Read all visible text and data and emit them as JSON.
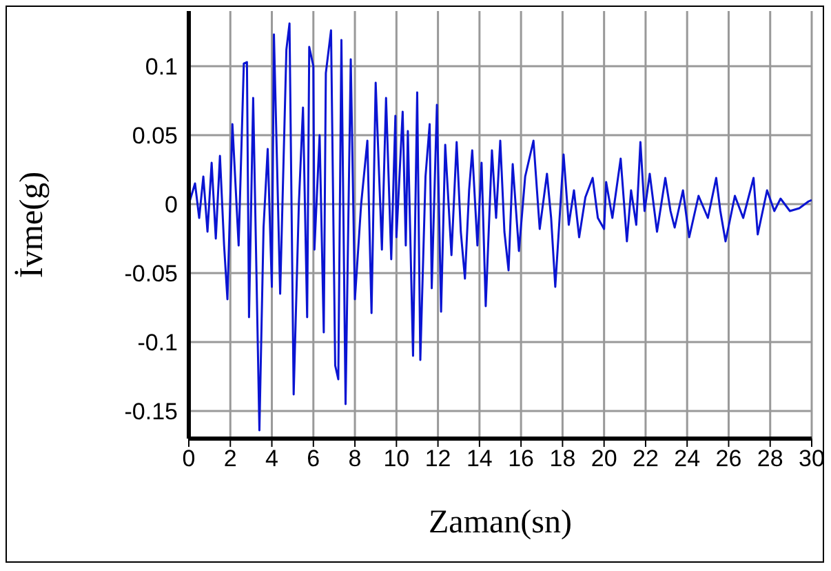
{
  "chart_data": {
    "type": "line",
    "xlabel": "Zaman(sn)",
    "ylabel": "İvme(g)",
    "xlim": [
      0,
      30
    ],
    "xticks": [
      0,
      2,
      4,
      6,
      8,
      10,
      12,
      14,
      16,
      18,
      20,
      22,
      24,
      26,
      28,
      30
    ],
    "ylim": [
      -0.17,
      0.14
    ],
    "yticks": [
      -0.15,
      -0.1,
      -0.05,
      0,
      0.05,
      0.1
    ],
    "grid": true,
    "marker": "none",
    "line_style": "solid",
    "x": [
      0,
      0.3,
      0.5,
      0.7,
      0.9,
      1.1,
      1.3,
      1.5,
      1.7,
      1.86,
      2.1,
      2.4,
      2.65,
      2.8,
      2.9,
      3.1,
      3.4,
      3.6,
      3.8,
      4.0,
      4.1,
      4.4,
      4.7,
      4.85,
      5.05,
      5.3,
      5.5,
      5.7,
      5.8,
      6.0,
      6.05,
      6.3,
      6.5,
      6.6,
      6.85,
      7.05,
      7.2,
      7.35,
      7.55,
      7.8,
      8.0,
      8.3,
      8.6,
      8.8,
      9.0,
      9.3,
      9.5,
      9.75,
      9.95,
      10.0,
      10.3,
      10.45,
      10.55,
      10.8,
      11.0,
      11.15,
      11.4,
      11.6,
      11.7,
      11.95,
      12.15,
      12.35,
      12.65,
      12.9,
      13.1,
      13.3,
      13.5,
      13.65,
      13.9,
      14.1,
      14.3,
      14.6,
      14.8,
      15.0,
      15.2,
      15.4,
      15.6,
      15.9,
      16.2,
      16.6,
      16.9,
      17.25,
      17.45,
      17.65,
      18.05,
      18.3,
      18.55,
      18.8,
      19.1,
      19.45,
      19.7,
      20.0,
      20.1,
      20.4,
      20.8,
      21.1,
      21.3,
      21.55,
      21.75,
      21.95,
      22.2,
      22.55,
      22.95,
      23.2,
      23.4,
      23.8,
      24.1,
      24.55,
      25.0,
      25.4,
      25.6,
      25.85,
      26.3,
      26.7,
      27.2,
      27.4,
      27.85,
      28.2,
      28.5,
      28.95,
      29.4,
      29.85,
      30
    ],
    "series": [
      {
        "color": "#0a14d2",
        "values": [
          0,
          0.015,
          -0.01,
          0.02,
          -0.02,
          0.03,
          -0.025,
          0.035,
          -0.03,
          -0.069,
          0.058,
          -0.03,
          0.102,
          0.103,
          -0.082,
          0.077,
          -0.164,
          -0.017,
          0.04,
          -0.06,
          0.123,
          -0.065,
          0.112,
          0.131,
          -0.138,
          0.0,
          0.07,
          -0.082,
          0.114,
          0.1,
          -0.033,
          0.05,
          -0.093,
          0.095,
          0.126,
          -0.117,
          -0.127,
          0.119,
          -0.145,
          0.105,
          -0.069,
          0.0,
          0.046,
          -0.079,
          0.088,
          -0.033,
          0.077,
          -0.04,
          0.064,
          -0.024,
          0.067,
          -0.03,
          0.053,
          -0.11,
          0.081,
          -0.113,
          0.02,
          0.058,
          -0.061,
          0.072,
          -0.078,
          0.043,
          -0.037,
          0.045,
          -0.02,
          -0.054,
          0.01,
          0.039,
          -0.03,
          0.03,
          -0.074,
          0.039,
          -0.01,
          0.046,
          -0.02,
          -0.048,
          0.029,
          -0.034,
          0.02,
          0.046,
          -0.018,
          0.022,
          -0.01,
          -0.06,
          0.036,
          -0.015,
          0.01,
          -0.024,
          0.005,
          0.019,
          -0.01,
          -0.018,
          0.016,
          -0.01,
          0.033,
          -0.027,
          0.01,
          -0.015,
          0.045,
          -0.005,
          0.022,
          -0.02,
          0.019,
          -0.005,
          -0.017,
          0.01,
          -0.024,
          0.006,
          -0.01,
          0.019,
          -0.005,
          -0.027,
          0.006,
          -0.01,
          0.019,
          -0.022,
          0.01,
          -0.005,
          0.004,
          -0.005,
          -0.003,
          0.002,
          0.003
        ]
      }
    ]
  }
}
